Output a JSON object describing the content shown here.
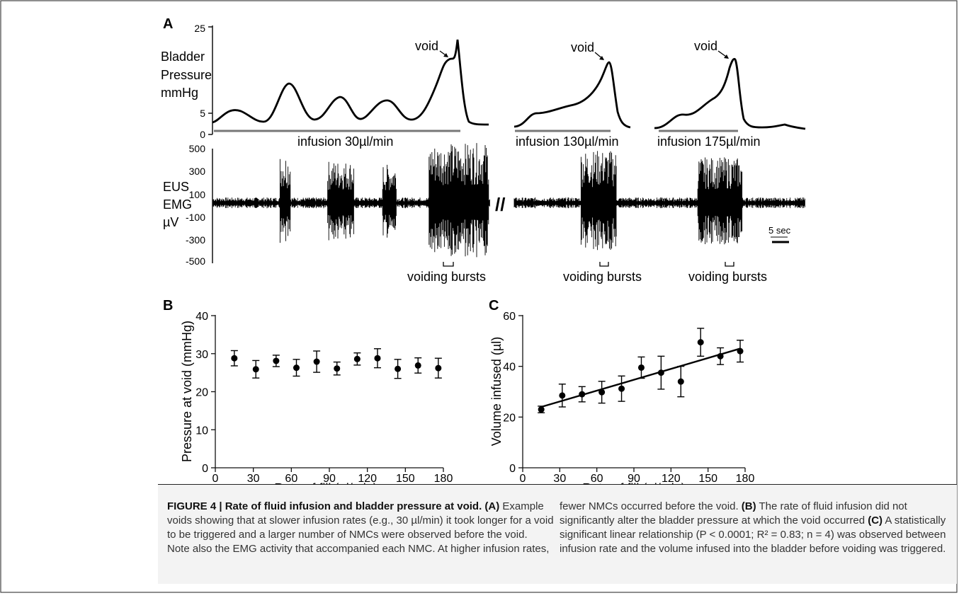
{
  "panel_a": {
    "label": "A",
    "pressure_axis_label": [
      "Bladder",
      "Pressure",
      "mmHg"
    ],
    "pressure_ticks": [
      "25",
      "5",
      "0"
    ],
    "emg_axis_label": [
      "EUS",
      "EMG",
      "µV"
    ],
    "emg_ticks": [
      "500",
      "300",
      "100",
      "-100",
      "-300",
      "-500"
    ],
    "void_label": "void",
    "infusions": [
      "infusion 30µl/min",
      "infusion 130µl/min",
      "infusion 175µl/min"
    ],
    "voiding_label": "voiding bursts",
    "scale_bar_label": "5 sec",
    "break_mark": "//"
  },
  "chart_data": [
    {
      "panel": "B",
      "type": "scatter",
      "xlabel": "Rate of fill (µl/min)",
      "ylabel": "Pressure at void (mmHg)",
      "xlim": [
        0,
        180
      ],
      "ylim": [
        0,
        40
      ],
      "xticks": [
        "0",
        "30",
        "60",
        "90",
        "120",
        "150",
        "180"
      ],
      "yticks": [
        "0",
        "10",
        "20",
        "30",
        "40"
      ],
      "x": [
        15,
        32,
        48,
        64,
        80,
        96,
        112,
        128,
        144,
        160,
        176
      ],
      "y": [
        28.8,
        25.9,
        28.1,
        26.3,
        27.9,
        26.1,
        28.6,
        28.8,
        26.0,
        26.9,
        26.2
      ],
      "err": [
        2.0,
        2.3,
        1.5,
        2.2,
        2.8,
        1.7,
        1.6,
        2.5,
        2.5,
        2.0,
        2.6
      ]
    },
    {
      "panel": "C",
      "type": "scatter",
      "xlabel": "Rate of fill (µl/min)",
      "ylabel": "Volume infused (µl)",
      "xlim": [
        0,
        180
      ],
      "ylim": [
        0,
        60
      ],
      "xticks": [
        "0",
        "30",
        "60",
        "90",
        "120",
        "150",
        "180"
      ],
      "yticks": [
        "0",
        "20",
        "40",
        "60"
      ],
      "x": [
        15,
        32,
        48,
        64,
        80,
        96,
        112,
        128,
        144,
        160,
        176
      ],
      "y": [
        23,
        28.5,
        29,
        29.8,
        31.2,
        39.5,
        37.5,
        34,
        49.5,
        44,
        46
      ],
      "err": [
        1.3,
        4.5,
        3,
        4.3,
        5,
        4.2,
        6.5,
        6,
        5.5,
        3.3,
        4.3
      ],
      "fit_line": {
        "x": [
          15,
          176
        ],
        "y": [
          24,
          47
        ]
      }
    }
  ],
  "caption": {
    "left_lines": [
      "FIGURE 4 | Rate of fluid infusion and bladder pressure at void. (A) Example",
      "voids showing that at slower infusion rates (e.g., 30 µl/min) it took longer for a void",
      "to be triggered and a larger number of NMCs were observed before the void.",
      "Note also the EMG activity that accompanied each NMC. At higher infusion rates,"
    ],
    "right_lines": [
      "fewer NMCs occurred before the void. (B) The rate of fluid infusion did not",
      "significantly alter the bladder pressure at which the void occurred (C) A statistically",
      "significant linear relationship (P < 0.0001; R² = 0.83; n = 4) was observed between",
      "infusion rate and the volume infused into the bladder before voiding was triggered."
    ]
  }
}
